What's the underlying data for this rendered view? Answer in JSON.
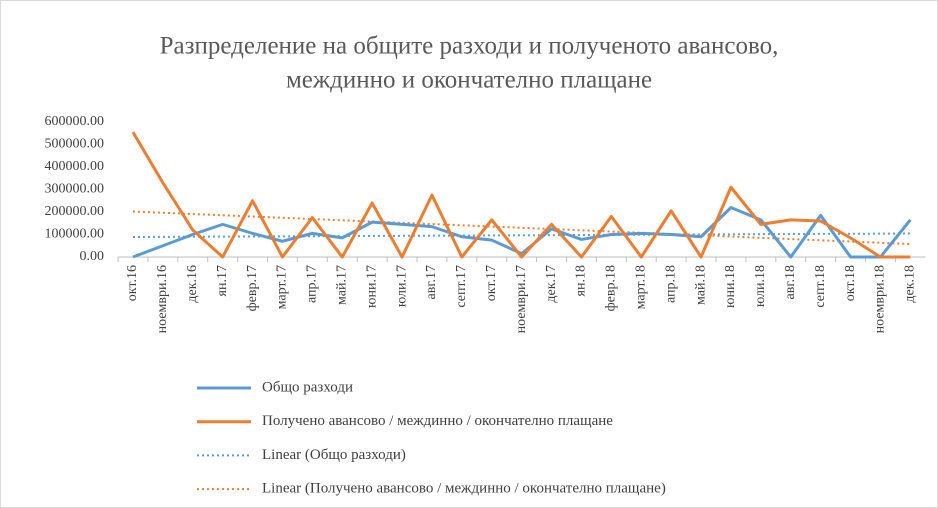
{
  "chart_data": {
    "type": "line",
    "title": [
      "Разпределение на общите разходи и полученото авансово,",
      "междинно и окончателно плащане"
    ],
    "categories": [
      "окт.16",
      "ноември.16",
      "дек.16",
      "ян.17",
      "февр.17",
      "март.17",
      "апр.17",
      "май.17",
      "юни.17",
      "юли.17",
      "авг.17",
      "септ.17",
      "окт.17",
      "ноември.17",
      "дек.17",
      "ян.18",
      "февр.18",
      "март.18",
      "апр.18",
      "май.18",
      "юни.18",
      "юли.18",
      "авг.18",
      "септ.18",
      "окт.18",
      "ноември.18",
      "дек.18"
    ],
    "series": [
      {
        "name": "Общо разходи",
        "color": "#5b9bd5",
        "values": [
          0,
          50000,
          100000,
          145000,
          105000,
          70000,
          105000,
          85000,
          155000,
          145000,
          135000,
          90000,
          75000,
          15000,
          125000,
          78000,
          100000,
          105000,
          100000,
          90000,
          220000,
          165000,
          0,
          185000,
          0,
          0,
          165000
        ],
        "trendline": {
          "type": "linear",
          "name": "Linear  (Общо разходи)"
        }
      },
      {
        "name": "Получено авансово / междинно / окончателно плащане",
        "color": "#ed7d31",
        "values": [
          555000,
          330000,
          120000,
          0,
          250000,
          0,
          175000,
          0,
          240000,
          0,
          275000,
          0,
          165000,
          0,
          145000,
          0,
          180000,
          0,
          205000,
          0,
          310000,
          145000,
          165000,
          160000,
          85000,
          0,
          0
        ],
        "trendline": {
          "type": "linear",
          "name": "Linear  (Получено авансово / междинно / окончателно плащане)"
        }
      }
    ],
    "ylim": [
      0,
      600000
    ],
    "yticks": [
      {
        "value": 0,
        "label": "0.00"
      },
      {
        "value": 100000,
        "label": "100000.00"
      },
      {
        "value": 200000,
        "label": "200000.00"
      },
      {
        "value": 300000,
        "label": "300000.00"
      },
      {
        "value": 400000,
        "label": "400000.00"
      },
      {
        "value": 500000,
        "label": "500000.00"
      },
      {
        "value": 600000,
        "label": "600000.00"
      }
    ],
    "grid": false,
    "legend": "bottom"
  }
}
